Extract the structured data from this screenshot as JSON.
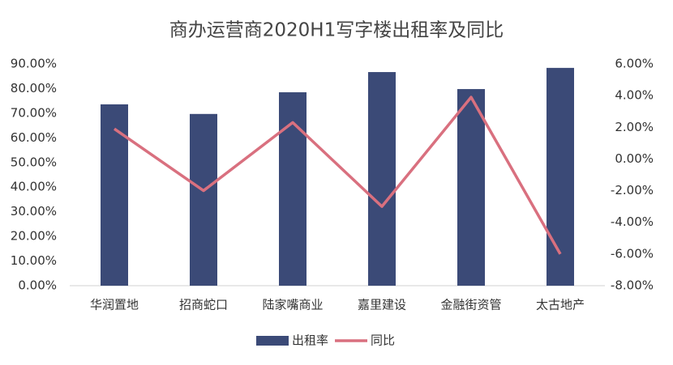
{
  "chart_data": {
    "type": "bar",
    "title": "商办运营商2020H1写字楼出租率及同比",
    "categories": [
      "华润置地",
      "招商蛇口",
      "陆家嘴商业",
      "嘉里建设",
      "金融街资管",
      "太古地产"
    ],
    "series": [
      {
        "name": "出租率",
        "type": "bar",
        "color": "#3b4a77",
        "values": [
          73.6,
          69.7,
          78.5,
          86.7,
          79.8,
          88.4
        ]
      },
      {
        "name": "同比",
        "type": "line",
        "axis": "y2",
        "color": "#d9707f",
        "values": [
          1.9,
          -2.0,
          2.3,
          -3.0,
          3.9,
          -6.0
        ]
      }
    ],
    "ylim": [
      0,
      90
    ],
    "yticks": [
      {
        "value": 0,
        "label": "0.00%"
      },
      {
        "value": 10,
        "label": "10.00%"
      },
      {
        "value": 20,
        "label": "20.00%"
      },
      {
        "value": 30,
        "label": "30.00%"
      },
      {
        "value": 40,
        "label": "40.00%"
      },
      {
        "value": 50,
        "label": "50.00%"
      },
      {
        "value": 60,
        "label": "60.00%"
      },
      {
        "value": 70,
        "label": "70.00%"
      },
      {
        "value": 80,
        "label": "80.00%"
      },
      {
        "value": 90,
        "label": "90.00%"
      }
    ],
    "y2lim": [
      -8,
      6
    ],
    "y2ticks": [
      {
        "value": -8,
        "label": "-8.00%"
      },
      {
        "value": -6,
        "label": "-6.00%"
      },
      {
        "value": -4,
        "label": "-4.00%"
      },
      {
        "value": -2,
        "label": "-2.00%"
      },
      {
        "value": 0,
        "label": "0.00%"
      },
      {
        "value": 2,
        "label": "2.00%"
      },
      {
        "value": 4,
        "label": "4.00%"
      },
      {
        "value": 6,
        "label": "6.00%"
      }
    ],
    "grid": false,
    "legend": "bottom"
  }
}
